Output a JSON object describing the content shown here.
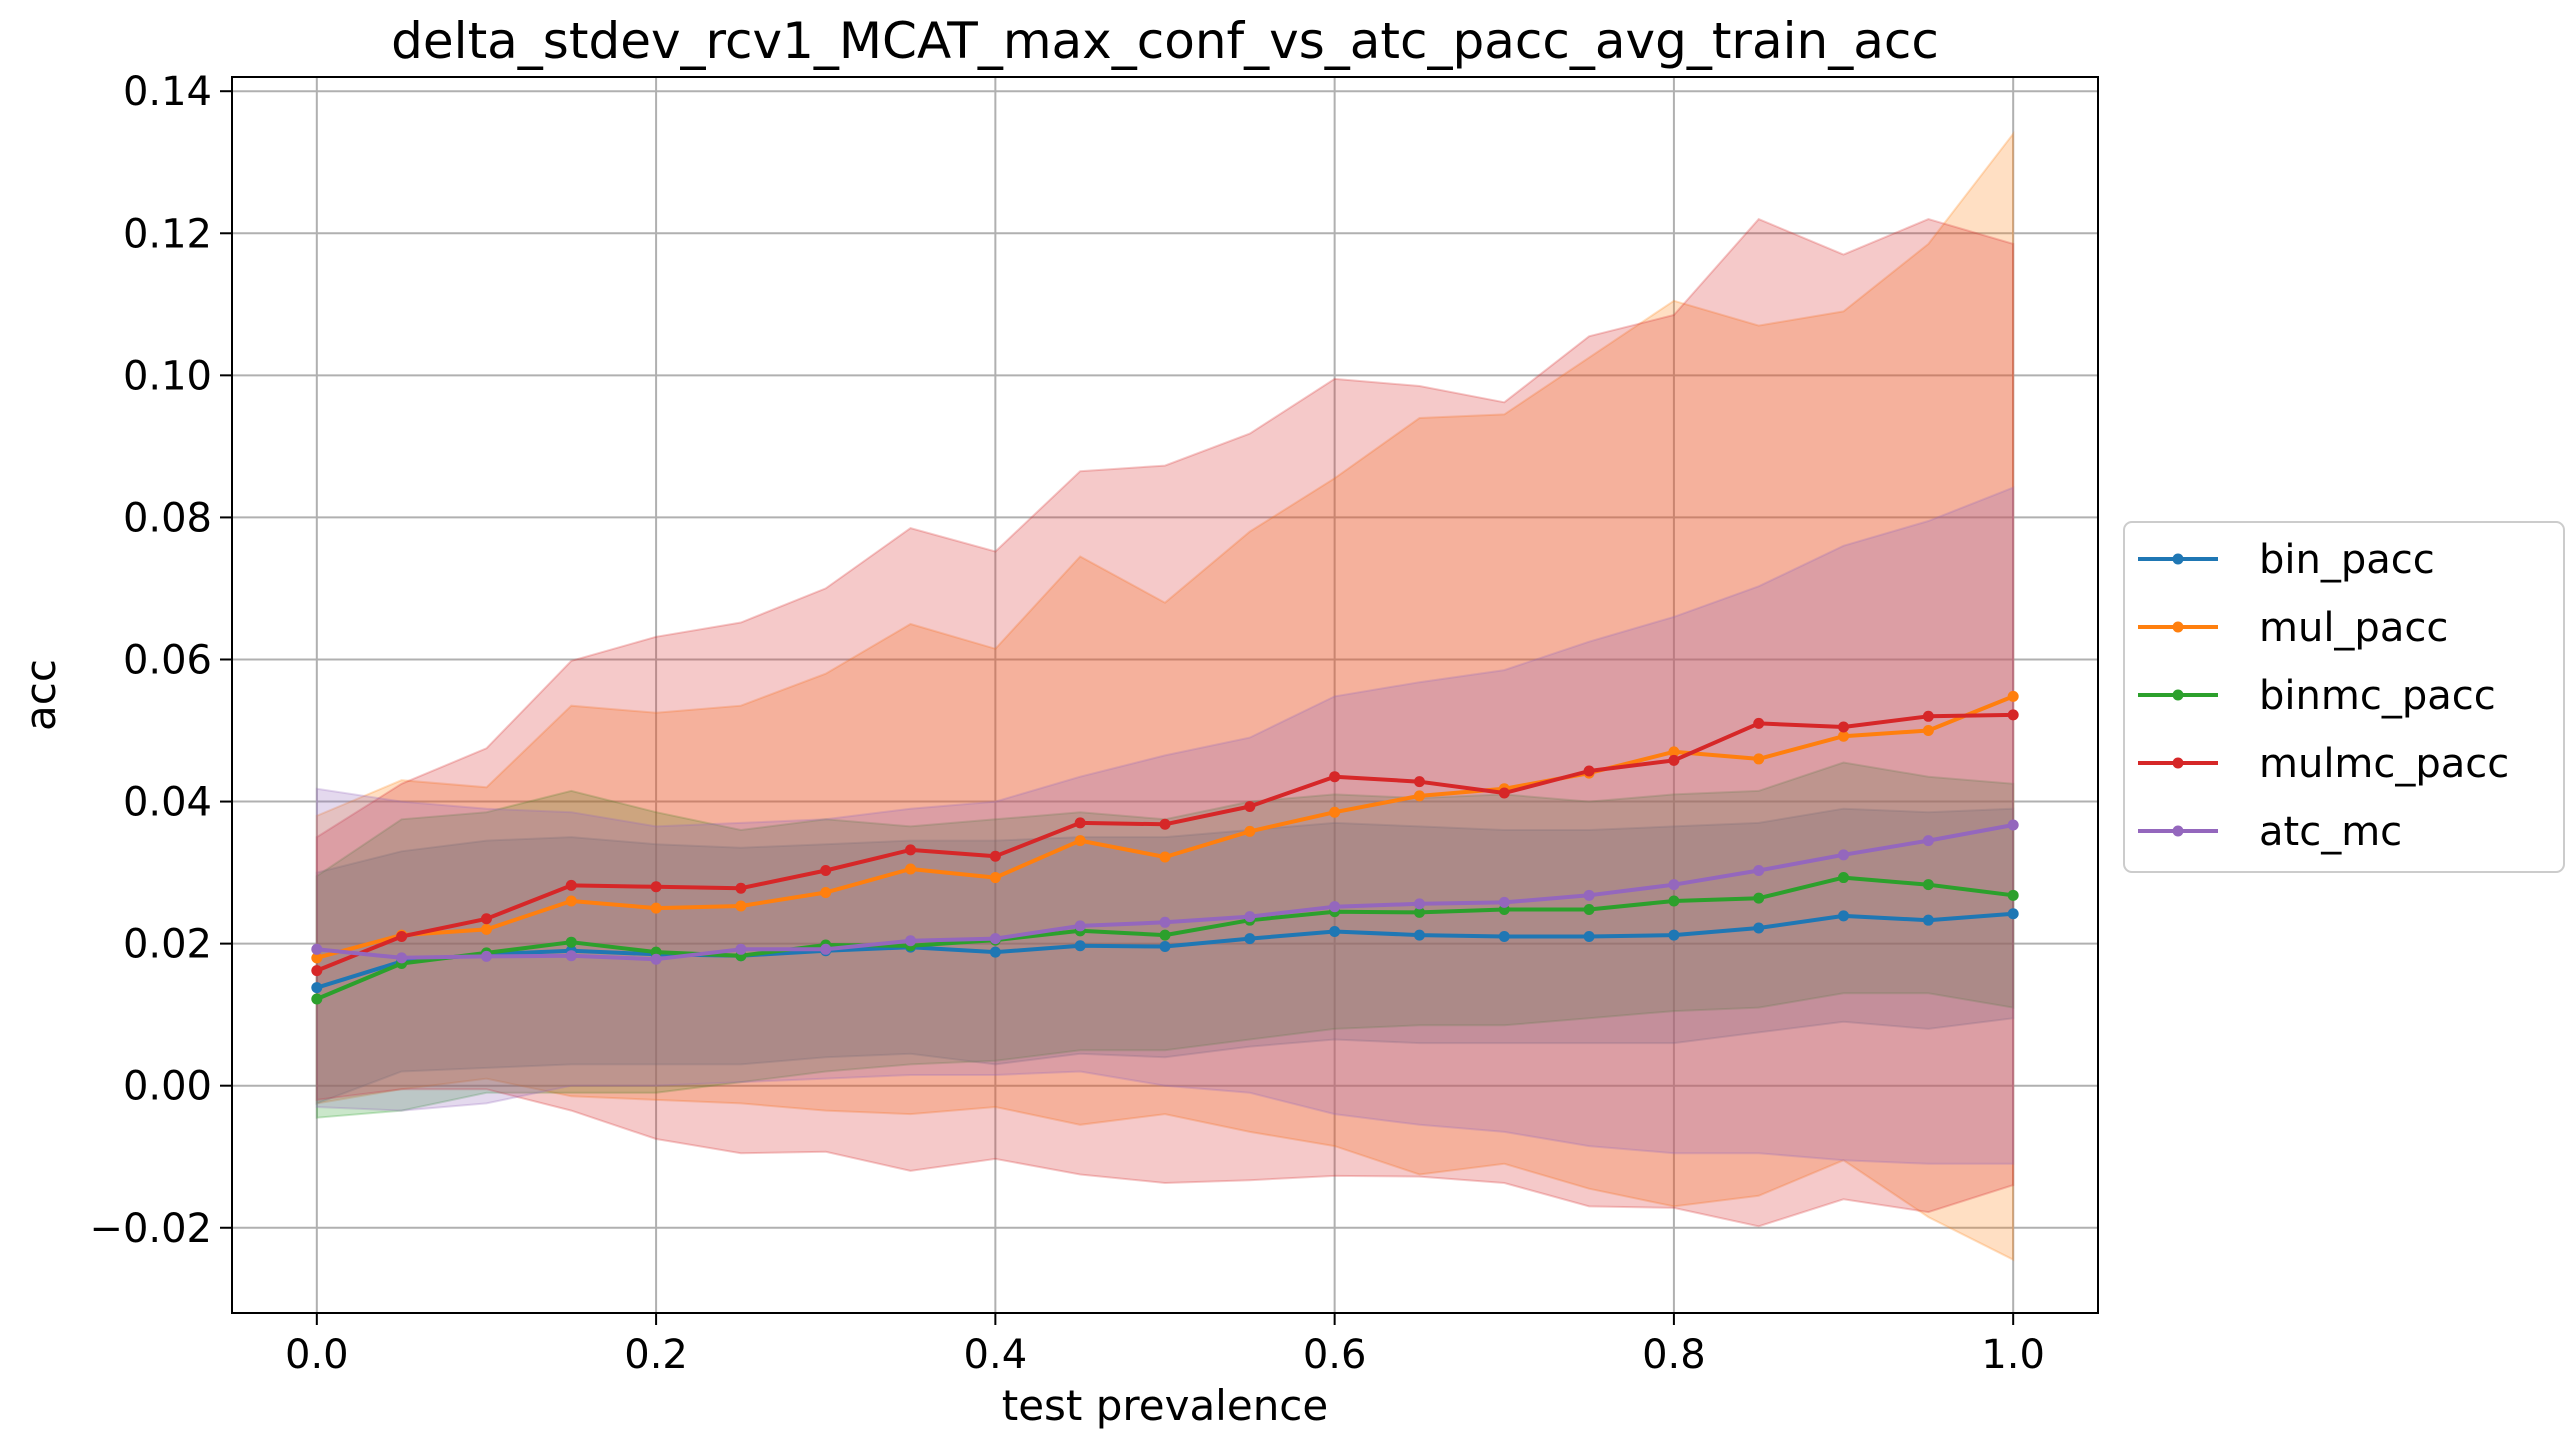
{
  "chart_data": {
    "type": "line",
    "title": "delta_stdev_rcv1_MCAT_max_conf_vs_atc_pacc_avg_train_acc",
    "xlabel": "test prevalence",
    "ylabel": "acc",
    "xlim": [
      -0.05,
      1.05
    ],
    "ylim": [
      -0.032,
      0.142
    ],
    "xticks": [
      0.0,
      0.2,
      0.4,
      0.6,
      0.8,
      1.0
    ],
    "xtick_labels": [
      "0.0",
      "0.2",
      "0.4",
      "0.6",
      "0.8",
      "1.0"
    ],
    "yticks": [
      -0.02,
      0.0,
      0.02,
      0.04,
      0.06,
      0.08,
      0.1,
      0.12,
      0.14
    ],
    "ytick_labels": [
      "−0.02",
      "0.00",
      "0.02",
      "0.04",
      "0.06",
      "0.08",
      "0.10",
      "0.12",
      "0.14"
    ],
    "grid": true,
    "legend_position": "outside-right",
    "x": [
      0.0,
      0.05,
      0.1,
      0.15,
      0.2,
      0.25,
      0.3,
      0.35,
      0.4,
      0.45,
      0.5,
      0.55,
      0.6,
      0.65,
      0.7,
      0.75,
      0.8,
      0.85,
      0.9,
      0.95,
      1.0
    ],
    "series": [
      {
        "name": "bin_pacc",
        "color": "#1f77b4",
        "values": [
          0.0138,
          0.0175,
          0.0185,
          0.019,
          0.0185,
          0.0183,
          0.019,
          0.0195,
          0.0188,
          0.0197,
          0.0196,
          0.0207,
          0.0217,
          0.0212,
          0.021,
          0.021,
          0.0212,
          0.0222,
          0.0239,
          0.0233,
          0.0242
        ],
        "upper": [
          0.03,
          0.033,
          0.0345,
          0.035,
          0.034,
          0.0335,
          0.034,
          0.0345,
          0.0345,
          0.035,
          0.035,
          0.036,
          0.037,
          0.0365,
          0.036,
          0.036,
          0.0365,
          0.037,
          0.039,
          0.0385,
          0.039
        ],
        "lower": [
          -0.0025,
          0.002,
          0.0025,
          0.003,
          0.003,
          0.003,
          0.004,
          0.0045,
          0.003,
          0.0045,
          0.004,
          0.0055,
          0.0065,
          0.006,
          0.006,
          0.006,
          0.006,
          0.0075,
          0.009,
          0.008,
          0.0095
        ]
      },
      {
        "name": "mul_pacc",
        "color": "#ff7f0e",
        "values": [
          0.018,
          0.0212,
          0.022,
          0.026,
          0.025,
          0.0253,
          0.0272,
          0.0305,
          0.0293,
          0.0345,
          0.0322,
          0.0358,
          0.0385,
          0.0408,
          0.0418,
          0.044,
          0.047,
          0.046,
          0.0492,
          0.05,
          0.0548
        ],
        "upper": [
          0.038,
          0.043,
          0.042,
          0.0535,
          0.0525,
          0.0535,
          0.058,
          0.065,
          0.0615,
          0.0745,
          0.068,
          0.078,
          0.0855,
          0.094,
          0.0945,
          0.1025,
          0.1105,
          0.107,
          0.109,
          0.1185,
          0.134
        ],
        "lower": [
          -0.0025,
          -0.0005,
          0.001,
          -0.0015,
          -0.002,
          -0.0025,
          -0.0035,
          -0.004,
          -0.003,
          -0.0055,
          -0.004,
          -0.0065,
          -0.0085,
          -0.0125,
          -0.011,
          -0.0145,
          -0.017,
          -0.0155,
          -0.0105,
          -0.0185,
          -0.0245
        ]
      },
      {
        "name": "binmc_pacc",
        "color": "#2ca02c",
        "values": [
          0.0122,
          0.0172,
          0.0187,
          0.0202,
          0.0188,
          0.0183,
          0.0198,
          0.0197,
          0.0205,
          0.0218,
          0.0212,
          0.0233,
          0.0245,
          0.0244,
          0.0248,
          0.0248,
          0.026,
          0.0264,
          0.0293,
          0.0283,
          0.0268
        ],
        "upper": [
          0.0295,
          0.0375,
          0.0385,
          0.0415,
          0.0385,
          0.036,
          0.0375,
          0.0365,
          0.0375,
          0.0385,
          0.0375,
          0.04,
          0.041,
          0.0405,
          0.041,
          0.04,
          0.041,
          0.0415,
          0.0455,
          0.0435,
          0.0425
        ],
        "lower": [
          -0.0045,
          -0.0035,
          -0.001,
          -0.001,
          -0.001,
          0.0005,
          0.002,
          0.003,
          0.0035,
          0.005,
          0.005,
          0.0065,
          0.008,
          0.0085,
          0.0085,
          0.0095,
          0.0105,
          0.011,
          0.013,
          0.013,
          0.011
        ]
      },
      {
        "name": "mulmc_pacc",
        "color": "#d62728",
        "values": [
          0.0162,
          0.021,
          0.0235,
          0.0282,
          0.028,
          0.0278,
          0.0303,
          0.0332,
          0.0323,
          0.037,
          0.0368,
          0.0393,
          0.0435,
          0.0428,
          0.0412,
          0.0443,
          0.0458,
          0.051,
          0.0505,
          0.052,
          0.0522
        ],
        "upper": [
          0.035,
          0.0425,
          0.0475,
          0.0598,
          0.0632,
          0.0652,
          0.07,
          0.0785,
          0.0752,
          0.0865,
          0.0873,
          0.0918,
          0.0995,
          0.0985,
          0.0962,
          0.1055,
          0.1085,
          0.122,
          0.117,
          0.122,
          0.1185
        ],
        "lower": [
          -0.002,
          -0.0005,
          -0.0005,
          -0.0035,
          -0.0075,
          -0.0095,
          -0.0093,
          -0.012,
          -0.0103,
          -0.0125,
          -0.0137,
          -0.0133,
          -0.0127,
          -0.0128,
          -0.0137,
          -0.017,
          -0.0172,
          -0.0198,
          -0.016,
          -0.0178,
          -0.014
        ]
      },
      {
        "name": "atc_mc",
        "color": "#9467bd",
        "values": [
          0.0192,
          0.018,
          0.0182,
          0.0183,
          0.0178,
          0.0192,
          0.0192,
          0.0204,
          0.0207,
          0.0225,
          0.023,
          0.0238,
          0.0252,
          0.0256,
          0.0258,
          0.0268,
          0.0283,
          0.0303,
          0.0325,
          0.0345,
          0.0367
        ],
        "upper": [
          0.0418,
          0.04,
          0.039,
          0.0385,
          0.0365,
          0.037,
          0.0375,
          0.039,
          0.04,
          0.0435,
          0.0465,
          0.049,
          0.0548,
          0.0568,
          0.0585,
          0.0625,
          0.066,
          0.0703,
          0.076,
          0.0795,
          0.0842
        ],
        "lower": [
          -0.003,
          -0.0035,
          -0.0025,
          0.0,
          0.0,
          0.0005,
          0.001,
          0.0015,
          0.0015,
          0.002,
          0.0,
          -0.001,
          -0.004,
          -0.0055,
          -0.0065,
          -0.0085,
          -0.0095,
          -0.0095,
          -0.0105,
          -0.011,
          -0.011
        ]
      }
    ]
  }
}
